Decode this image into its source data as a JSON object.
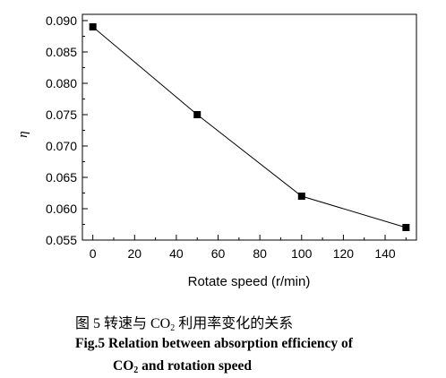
{
  "chart_data": {
    "type": "line",
    "x": [
      0,
      50,
      100,
      150
    ],
    "values": [
      0.089,
      0.075,
      0.062,
      0.057
    ],
    "xlabel": "Rotate speed (r/min)",
    "ylabel": "η",
    "xlim": [
      -5,
      155
    ],
    "ylim": [
      0.055,
      0.091
    ],
    "xticks": [
      0,
      20,
      40,
      60,
      80,
      100,
      120,
      140
    ],
    "xtick_labels": [
      "0",
      "20",
      "40",
      "60",
      "80",
      "100",
      "120",
      "140"
    ],
    "yticks": [
      0.055,
      0.06,
      0.065,
      0.07,
      0.075,
      0.08,
      0.085,
      0.09
    ],
    "ytick_labels": [
      "0.055",
      "0.060",
      "0.065",
      "0.070",
      "0.075",
      "0.080",
      "0.085",
      "0.090"
    ],
    "marker": "square",
    "line_color": "#000000",
    "marker_color": "#000000",
    "grid": false
  },
  "caption": {
    "cn_prefix": "图 5  转速与 CO",
    "cn_sub": "2",
    "cn_suffix": " 利用率变化的关系",
    "en_line1": "Fig.5 Relation between absorption efficiency of",
    "en_line2_prefix": "CO",
    "en_line2_sub": "2",
    "en_line2_suffix": " and rotation speed"
  }
}
